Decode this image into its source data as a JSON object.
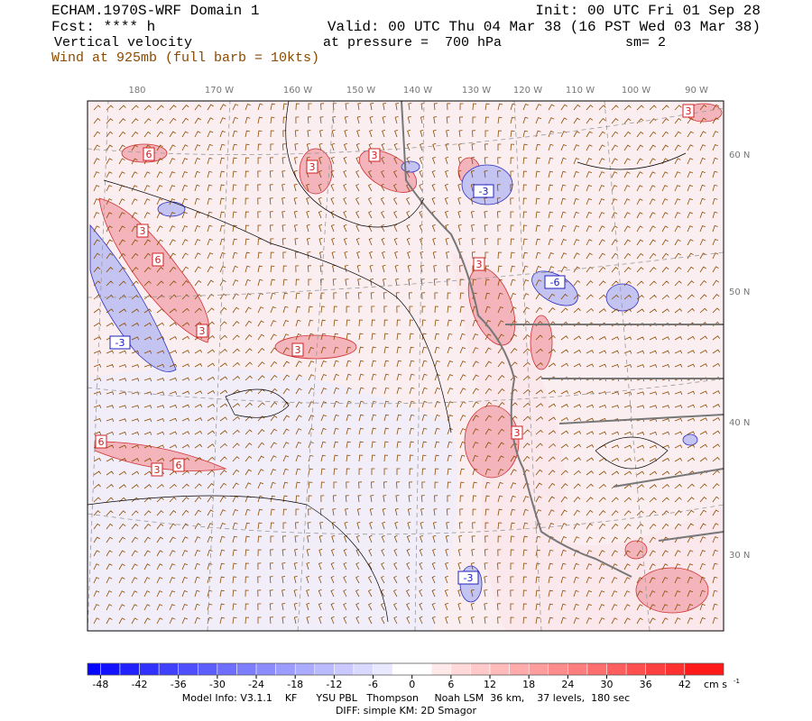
{
  "header": {
    "title": "ECHAM.1970S-WRF Domain 1",
    "init": "Init: 00 UTC Fri 01 Sep 28",
    "fcst": "Fcst: **** h",
    "valid": "Valid: 00 UTC Thu 04 Mar 38 (16 PST Wed 03 Mar 38)",
    "field": "Vertical velocity",
    "level": "at pressure =  700 hPa",
    "smooth": "sm= 2",
    "wind": "Wind at 925mb (full barb = 10kts)"
  },
  "map": {
    "lon_labels": [
      "180",
      "170 W",
      "160 W",
      "150 W",
      "140 W",
      "130 W",
      "120 W",
      "110 W",
      "100 W",
      "90 W"
    ],
    "lat_labels": [
      "60 N",
      "50 N",
      "40 N",
      "30 N"
    ],
    "contour_labels": [
      "3",
      "6",
      "3",
      "3",
      "6",
      "3",
      "-3",
      "3",
      "-3",
      "3",
      "-6",
      "3",
      "3",
      "6",
      "3",
      "6",
      "-3"
    ]
  },
  "colorbar": {
    "ticks": [
      -48,
      -42,
      -36,
      -30,
      -24,
      -18,
      -12,
      -6,
      0,
      6,
      12,
      18,
      24,
      30,
      36,
      42
    ],
    "range": [
      -50,
      48
    ],
    "unit": "cm s",
    "unit_exp": "-1"
  },
  "footer": {
    "model_info": "Model Info: V3.1.1    KF      YSU PBL   Thompson     Noah LSM  36 km,    37 levels,  180 sec",
    "diff": "DIFF: simple KM: 2D Smagor"
  }
}
